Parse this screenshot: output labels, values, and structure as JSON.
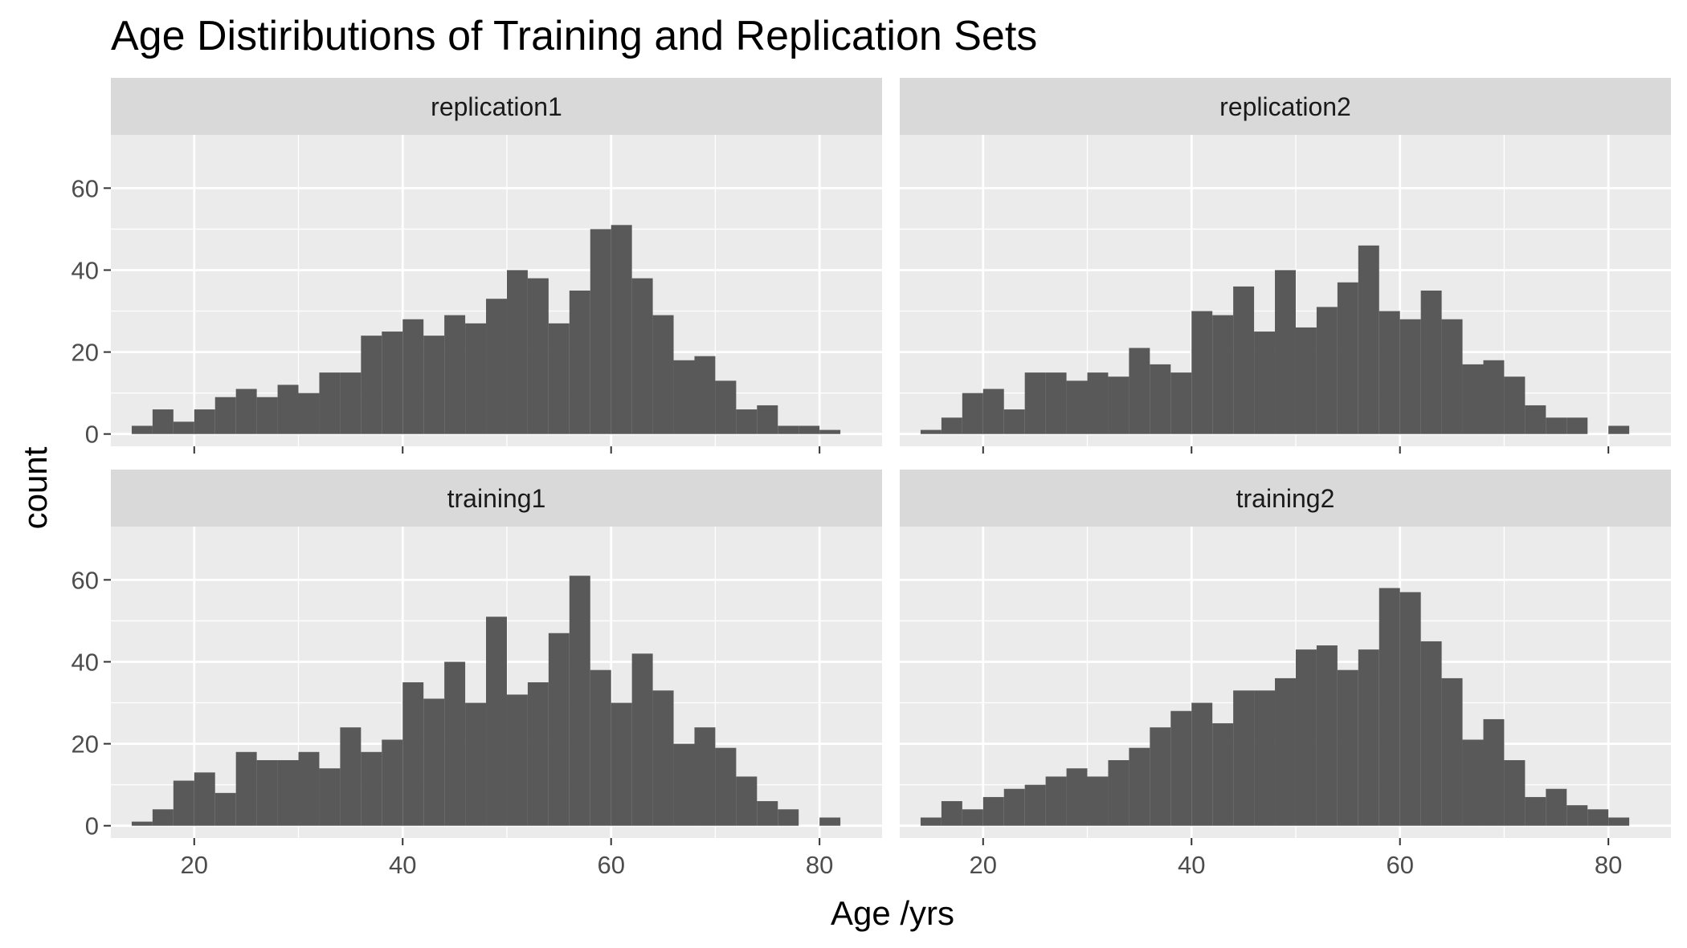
{
  "chart_data": {
    "type": "bar",
    "title": "Age Distiributions of Training and Replication Sets",
    "xlabel": "Age /yrs",
    "ylabel": "count",
    "xlim": [
      12,
      86
    ],
    "ylim": [
      -3,
      73
    ],
    "x_ticks": [
      20,
      40,
      60,
      80
    ],
    "y_ticks": [
      0,
      20,
      40,
      60
    ],
    "grid": true,
    "bin_width": 2,
    "bin_start": 14,
    "bar_color": "#595959",
    "panel_background": "#ebebeb",
    "strip_background": "#d9d9d9",
    "gridline_color": "#ffffff",
    "panels": [
      {
        "name": "replication1",
        "values": [
          2,
          6,
          3,
          6,
          9,
          11,
          9,
          12,
          10,
          15,
          15,
          24,
          25,
          28,
          24,
          29,
          27,
          33,
          40,
          38,
          27,
          35,
          50,
          51,
          38,
          29,
          18,
          19,
          13,
          6,
          7,
          2,
          2,
          1
        ]
      },
      {
        "name": "replication2",
        "values": [
          1,
          4,
          10,
          11,
          6,
          15,
          15,
          13,
          15,
          14,
          21,
          17,
          15,
          30,
          29,
          36,
          25,
          40,
          26,
          31,
          37,
          46,
          30,
          28,
          35,
          28,
          17,
          18,
          14,
          7,
          4,
          4,
          0,
          2
        ]
      },
      {
        "name": "training1",
        "values": [
          1,
          4,
          11,
          13,
          8,
          18,
          16,
          16,
          18,
          14,
          24,
          18,
          21,
          35,
          31,
          40,
          30,
          51,
          32,
          35,
          47,
          61,
          38,
          30,
          42,
          33,
          20,
          24,
          19,
          12,
          6,
          4,
          0,
          2
        ]
      },
      {
        "name": "training2",
        "values": [
          2,
          6,
          4,
          7,
          9,
          10,
          12,
          14,
          12,
          16,
          19,
          24,
          28,
          30,
          25,
          33,
          33,
          36,
          43,
          44,
          38,
          43,
          58,
          57,
          45,
          36,
          21,
          26,
          16,
          7,
          9,
          5,
          4,
          2
        ]
      }
    ]
  }
}
